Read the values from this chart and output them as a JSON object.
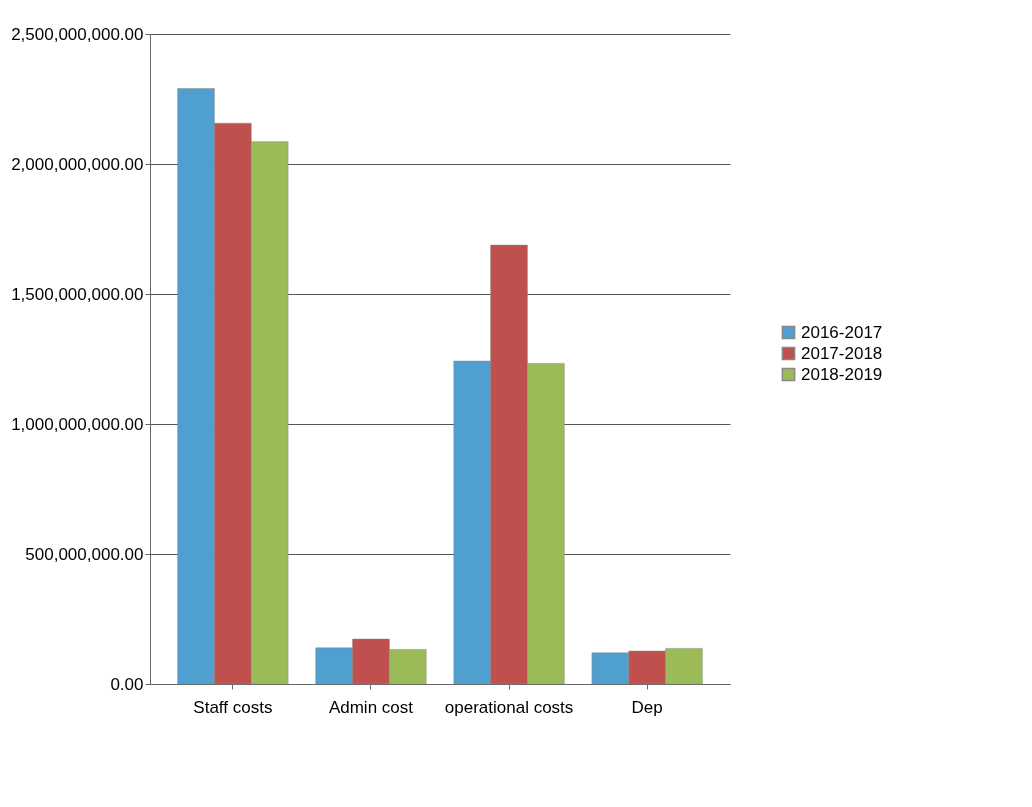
{
  "chart_data": {
    "type": "bar",
    "categories": [
      "Staff costs",
      "Admin cost",
      "operational costs",
      "Dep"
    ],
    "series": [
      {
        "name": "2016-2017",
        "color": "#4f9fd0",
        "values": [
          2290000000,
          139000000,
          1242000000,
          120000000
        ]
      },
      {
        "name": "2017-2018",
        "color": "#c0504d",
        "values": [
          2157000000,
          173000000,
          1688000000,
          127000000
        ]
      },
      {
        "name": "2018-2019",
        "color": "#9bbb59",
        "values": [
          2086000000,
          133000000,
          1233000000,
          137000000
        ]
      }
    ],
    "ylim": [
      0,
      2500000000
    ],
    "yticks": [
      {
        "value": 0,
        "label": "0.00"
      },
      {
        "value": 500000000,
        "label": "500,000,000.00"
      },
      {
        "value": 1000000000,
        "label": "1,000,000,000.00"
      },
      {
        "value": 1500000000,
        "label": "1,500,000,000.00"
      },
      {
        "value": 2000000000,
        "label": "2,000,000,000.00"
      },
      {
        "value": 2500000000,
        "label": "2,500,000,000.00"
      }
    ],
    "grid": "y",
    "legend": "right"
  }
}
